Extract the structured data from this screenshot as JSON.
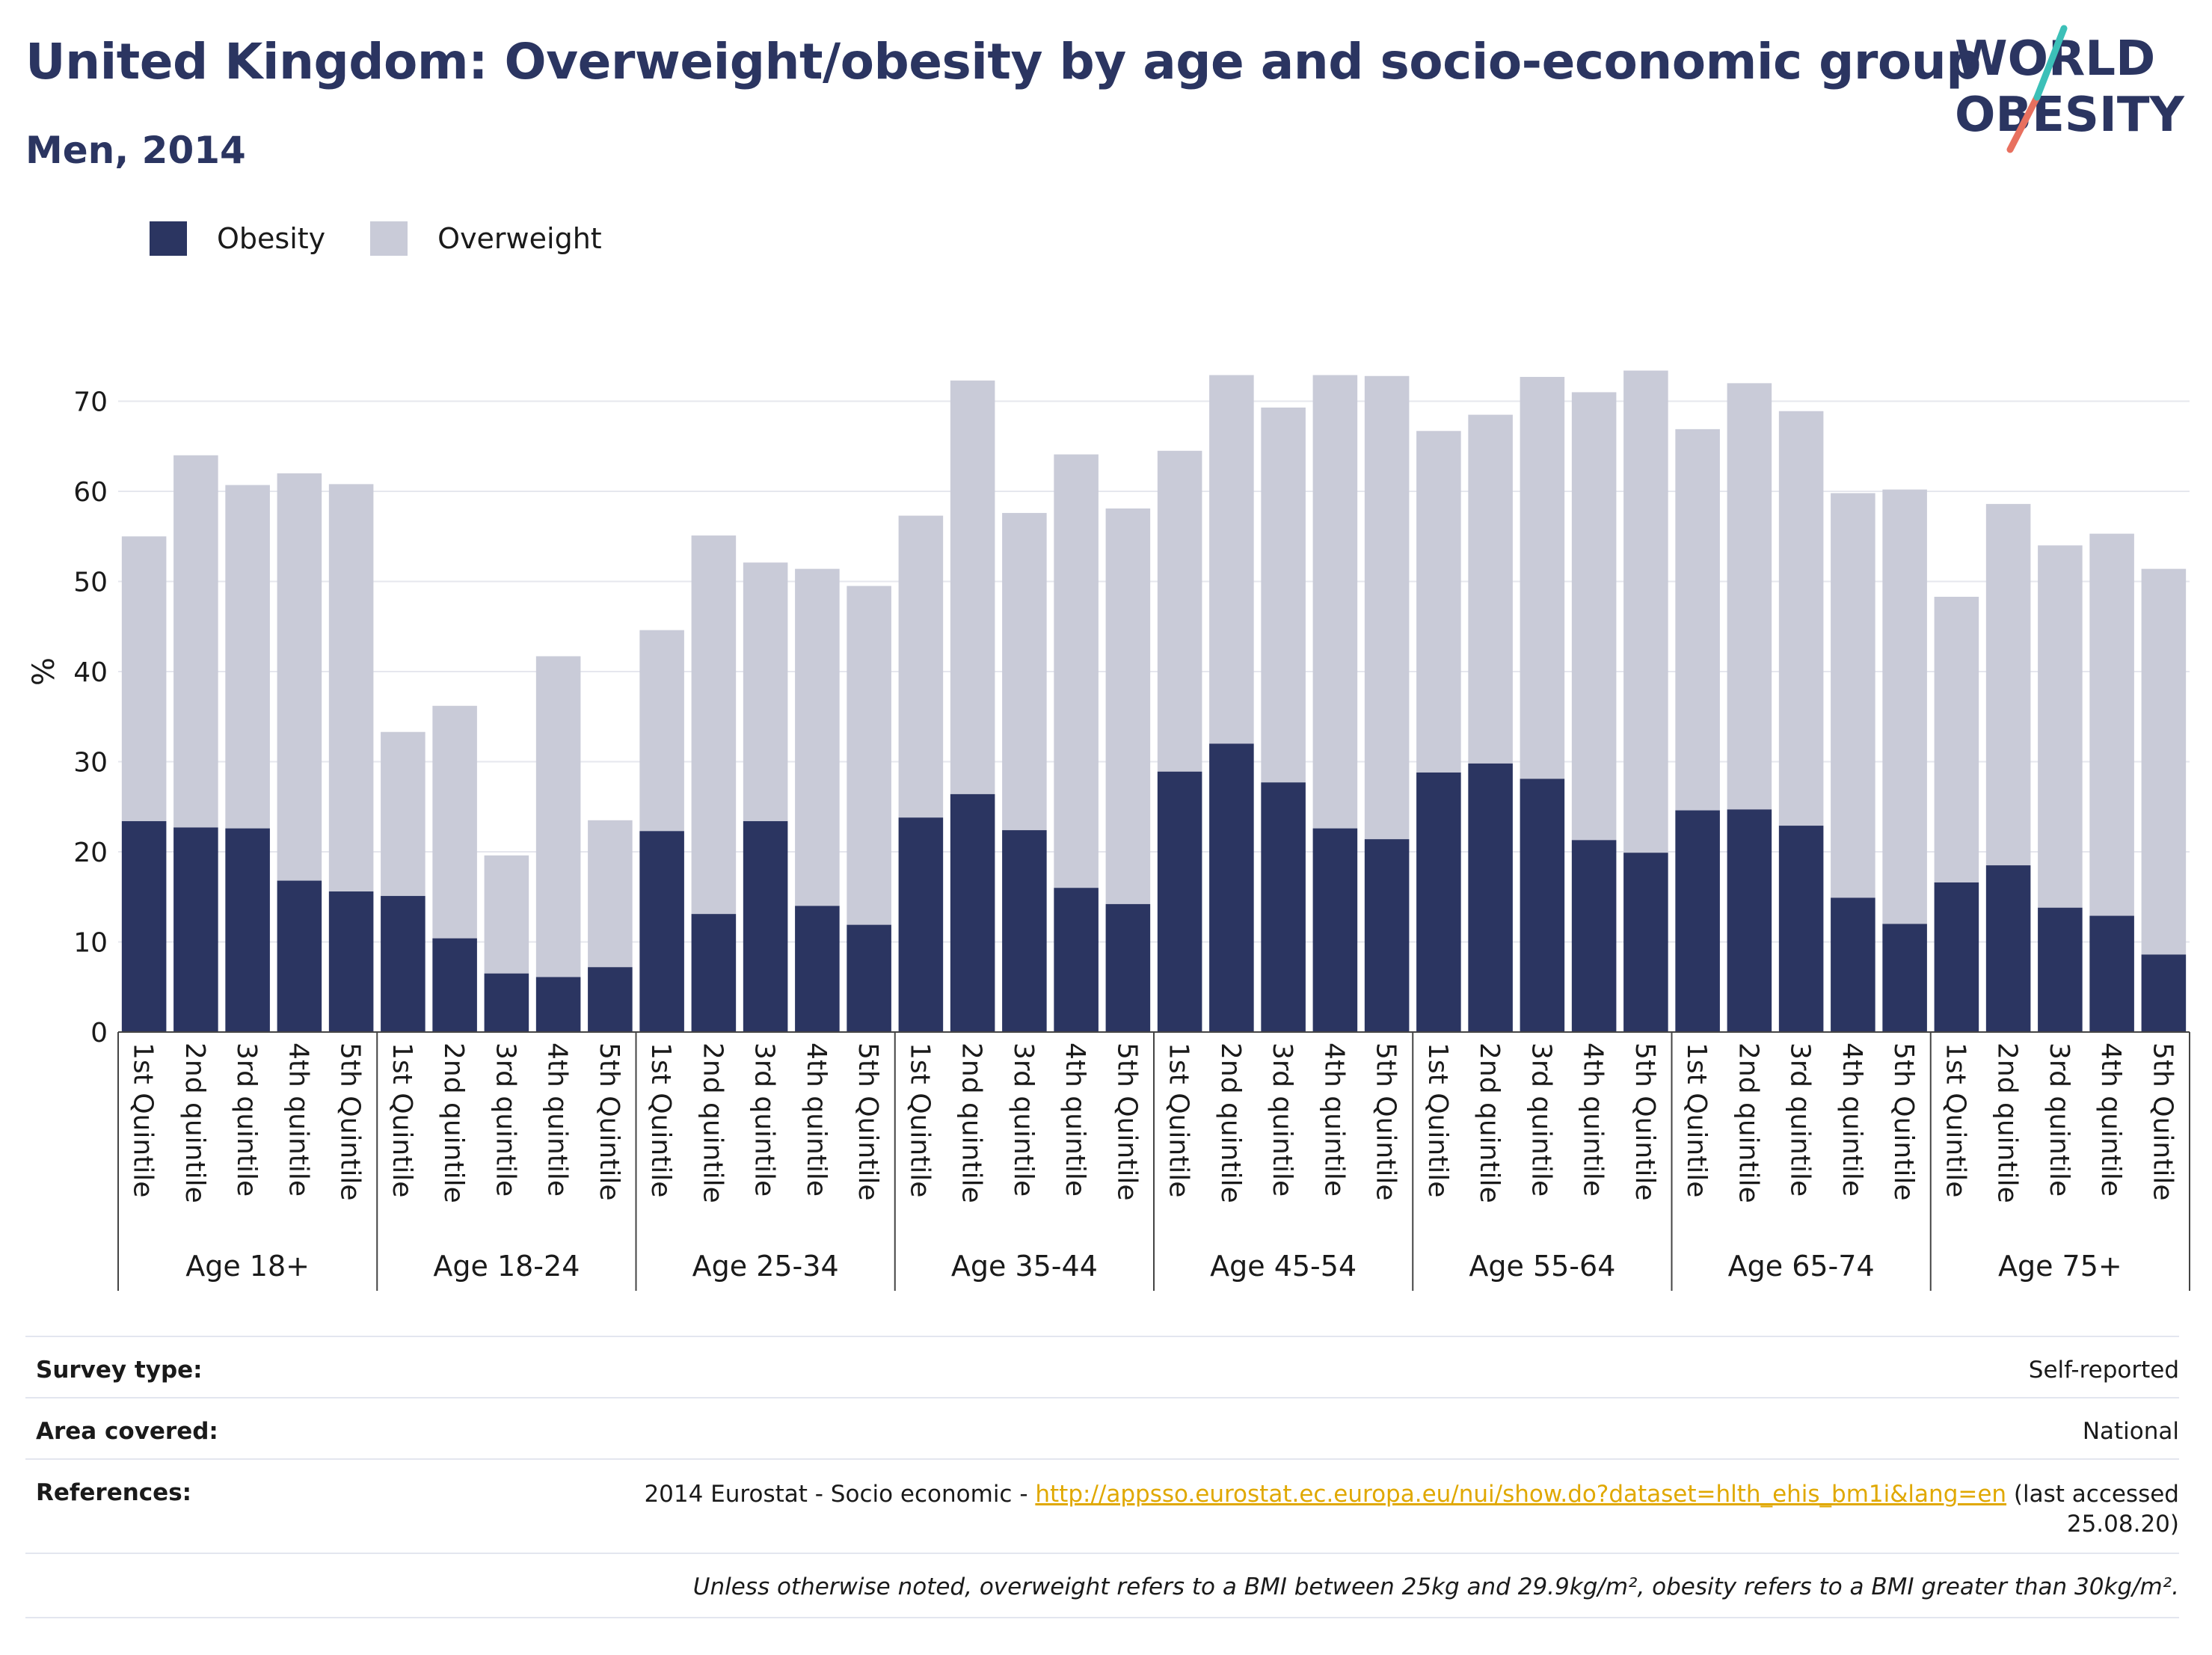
{
  "header": {
    "title": "United Kingdom: Overweight/obesity by age and socio-economic group",
    "subtitle": "Men, 2014"
  },
  "logo": {
    "line1": "WORLD",
    "line2": "OBESITY"
  },
  "legend": [
    {
      "label": "Obesity",
      "color": "#2b3561"
    },
    {
      "label": "Overweight",
      "color": "#c9cbd8"
    }
  ],
  "chart_data": {
    "type": "bar",
    "stacked": true,
    "ylabel": "%",
    "ylim": [
      0,
      75
    ],
    "yticks": [
      0,
      10,
      20,
      30,
      40,
      50,
      60,
      70
    ],
    "grid": true,
    "legend_position": "top-left",
    "groups": [
      {
        "name": "Age 18+",
        "categories": [
          "1st Quintile",
          "2nd quintile",
          "3rd quintile",
          "4th quintile",
          "5th Quintile"
        ]
      },
      {
        "name": "Age 18-24",
        "categories": [
          "1st Quintile",
          "2nd quintile",
          "3rd quintile",
          "4th quintile",
          "5th Quintile"
        ]
      },
      {
        "name": "Age 25-34",
        "categories": [
          "1st Quintile",
          "2nd quintile",
          "3rd quintile",
          "4th quintile",
          "5th Quintile"
        ]
      },
      {
        "name": "Age 35-44",
        "categories": [
          "1st Quintile",
          "2nd quintile",
          "3rd quintile",
          "4th quintile",
          "5th Quintile"
        ]
      },
      {
        "name": "Age 45-54",
        "categories": [
          "1st Quintile",
          "2nd quintile",
          "3rd quintile",
          "4th quintile",
          "5th Quintile"
        ]
      },
      {
        "name": "Age 55-64",
        "categories": [
          "1st Quintile",
          "2nd quintile",
          "3rd quintile",
          "4th quintile",
          "5th Quintile"
        ]
      },
      {
        "name": "Age 65-74",
        "categories": [
          "1st Quintile",
          "2nd quintile",
          "3rd quintile",
          "4th quintile",
          "5th Quintile"
        ]
      },
      {
        "name": "Age 75+",
        "categories": [
          "1st Quintile",
          "2nd quintile",
          "3rd quintile",
          "4th quintile",
          "5th Quintile"
        ]
      }
    ],
    "series": [
      {
        "name": "Obesity",
        "color": "#2b3561",
        "values": [
          23.4,
          22.7,
          22.6,
          16.8,
          15.6,
          15.1,
          10.4,
          6.5,
          6.1,
          7.2,
          22.3,
          13.1,
          23.4,
          14.0,
          11.9,
          23.8,
          26.4,
          22.4,
          16.0,
          14.2,
          28.9,
          32.0,
          27.7,
          22.6,
          21.4,
          28.8,
          29.8,
          28.1,
          21.3,
          19.9,
          24.6,
          24.7,
          22.9,
          14.9,
          12.0,
          16.6,
          18.5,
          13.8,
          12.9,
          8.6
        ]
      },
      {
        "name": "Overweight",
        "color": "#c9cbd8",
        "values": [
          31.6,
          41.3,
          38.1,
          45.2,
          45.2,
          18.2,
          25.8,
          13.1,
          35.6,
          16.3,
          22.3,
          42.0,
          28.7,
          37.4,
          37.6,
          33.5,
          45.9,
          35.2,
          48.1,
          43.9,
          35.6,
          40.9,
          41.6,
          50.3,
          51.4,
          37.9,
          38.7,
          44.6,
          49.7,
          53.5,
          42.3,
          47.3,
          46.0,
          44.9,
          48.2,
          31.7,
          40.1,
          40.2,
          42.4,
          42.8
        ]
      }
    ]
  },
  "info": {
    "survey_type_label": "Survey type:",
    "survey_type_value": "Self-reported",
    "area_label": "Area covered:",
    "area_value": "National",
    "references_label": "References:",
    "ref_prefix": "2014 Eurostat - Socio economic - ",
    "ref_link": "http://appsso.eurostat.ec.europa.eu/nui/show.do?dataset=hlth_ehis_bm1i&lang=en",
    "ref_suffix_1": " (last accessed",
    "ref_suffix_2": "25.08.20)",
    "note": "Unless otherwise noted, overweight refers to a BMI between 25kg and 29.9kg/m², obesity refers to a BMI greater than 30kg/m²."
  }
}
